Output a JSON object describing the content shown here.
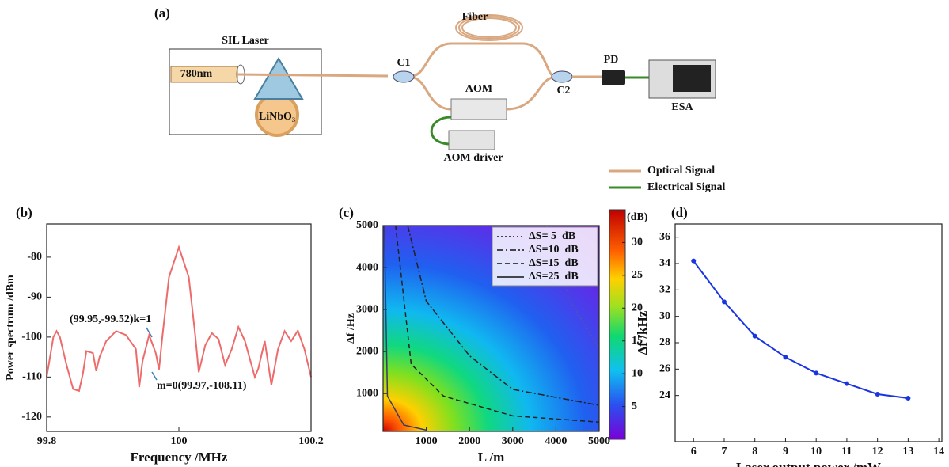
{
  "diagram": {
    "panel_label": "(a)",
    "sil_laser": "SIL Laser",
    "wavelength": "780nm",
    "crystal": "LiNbO₃",
    "fiber": "Fiber",
    "c1": "C1",
    "c2": "C2",
    "aom": "AOM",
    "aom_driver": "AOM driver",
    "pd": "PD",
    "esa": "ESA",
    "legend": [
      "Optical Signal",
      "Electrical Signal"
    ]
  },
  "chart_data": [
    {
      "type": "line",
      "panel_label": "(b)",
      "xlabel": "Frequency /MHz",
      "ylabel": "Power spectrum /dBm",
      "color": "#ee6b6b",
      "x": [
        99.8,
        99.81,
        99.815,
        99.82,
        99.83,
        99.84,
        99.849,
        99.855,
        99.86,
        99.87,
        99.875,
        99.88,
        99.89,
        99.905,
        99.92,
        99.935,
        99.94,
        99.945,
        99.955,
        99.965,
        99.97,
        99.975,
        99.985,
        100.0,
        100.015,
        100.025,
        100.03,
        100.04,
        100.05,
        100.06,
        100.07,
        100.08,
        100.09,
        100.1,
        100.11,
        100.115,
        100.12,
        100.13,
        100.14,
        100.15,
        100.16,
        100.17,
        100.18,
        100.19,
        100.2
      ],
      "values": [
        -110,
        -100,
        -98.5,
        -100,
        -107,
        -113,
        -113.5,
        -109,
        -103.5,
        -104,
        -108.5,
        -105,
        -101,
        -98.5,
        -99.5,
        -103,
        -112.5,
        -106,
        -99.5,
        -104,
        -108.11,
        -100,
        -85,
        -77.5,
        -85,
        -100,
        -108.8,
        -102,
        -99,
        -100.5,
        -107,
        -103,
        -97.5,
        -101,
        -107,
        -110,
        -108,
        -101,
        -112,
        -103,
        -98.5,
        -101,
        -98.4,
        -103,
        -110
      ],
      "xlim": [
        99.8,
        100.2
      ],
      "xticks": [
        99.8,
        100,
        100.2
      ],
      "ylim": [
        -123.6,
        -71.7
      ],
      "yticks": [
        -120,
        -110,
        -100,
        -90,
        -80
      ],
      "annotations": [
        "(99.95,-99.52)k=1",
        "m=0(99.97,-108.11)"
      ]
    },
    {
      "type": "contour",
      "panel_label": "(c)",
      "xlabel": "L /m",
      "ylabel": "Δf /Hz",
      "series": [
        {
          "name": "ΔS= 5  dB",
          "dash": "dotted",
          "color": "#5a4fb0",
          "x": [
            3780,
            4330,
            5000
          ],
          "values": [
            5000,
            3200,
            2080
          ]
        },
        {
          "name": "ΔS=10  dB",
          "dash": "dashdot",
          "color": "#222222",
          "x": [
            570,
            1000,
            2000,
            3000,
            5000
          ],
          "values": [
            5000,
            3200,
            1900,
            1100,
            720
          ]
        },
        {
          "name": "ΔS=15  dB",
          "dash": "dashed",
          "color": "#222222",
          "x": [
            290,
            650,
            1400,
            3000,
            5000
          ],
          "values": [
            5000,
            1700,
            940,
            470,
            320
          ]
        },
        {
          "name": "ΔS=25  dB",
          "dash": "solid",
          "color": "#3a3a6a",
          "x": [
            30,
            100,
            480,
            1000
          ],
          "values": [
            5000,
            940,
            250,
            130
          ]
        }
      ],
      "xlim": [
        0,
        5000
      ],
      "xticks": [
        1000,
        2000,
        3000,
        4000,
        5000
      ],
      "ylim": [
        100,
        5000
      ],
      "yticks": [
        1000,
        2000,
        3000,
        4000,
        5000
      ],
      "colorbar": {
        "label": "(dB)",
        "lim": [
          0,
          35
        ],
        "ticks": [
          5,
          10,
          15,
          20,
          25,
          30
        ]
      }
    },
    {
      "type": "line",
      "panel_label": "(d)",
      "xlabel": "Laser output power /mW",
      "ylabel": "Δf /kHz",
      "color": "#1a35e0",
      "markers": true,
      "x": [
        6,
        7,
        8,
        9,
        10,
        11,
        12,
        13
      ],
      "values": [
        34.2,
        31.1,
        28.5,
        26.9,
        25.7,
        24.9,
        24.1,
        23.8
      ],
      "xlim": [
        5.4,
        14.1
      ],
      "xticks": [
        6,
        7,
        8,
        9,
        10,
        11,
        12,
        13,
        14
      ],
      "ylim": [
        20.5,
        37
      ],
      "yticks": [
        24,
        26,
        28,
        30,
        32,
        34,
        36
      ]
    }
  ]
}
